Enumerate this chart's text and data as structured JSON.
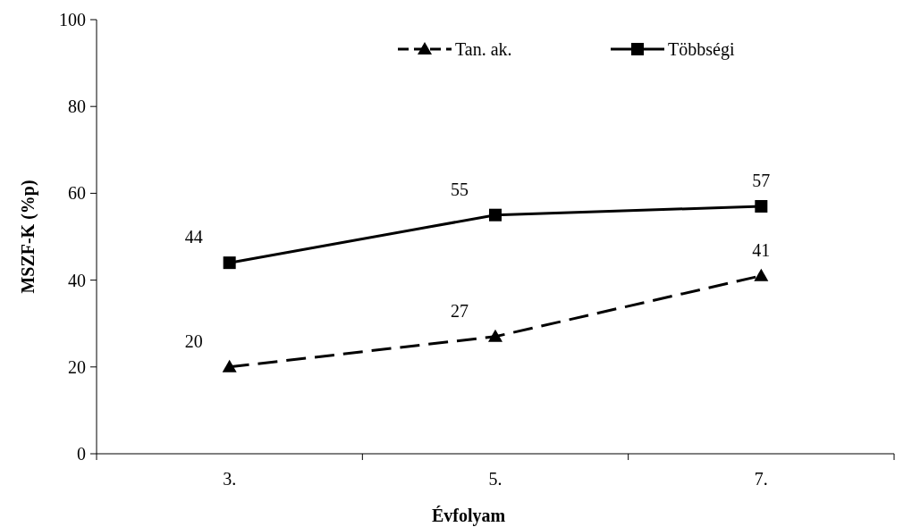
{
  "chart_data": {
    "type": "line",
    "xlabel": "Évfolyam",
    "ylabel": "MSZF-K (%p)",
    "categories": [
      "3.",
      "5.",
      "7."
    ],
    "series": [
      {
        "name": "Tan. ak.",
        "color": "#000000",
        "values": [
          20,
          27,
          41
        ],
        "marker": "triangle",
        "line_style": "dashed"
      },
      {
        "name": "Többségi",
        "color": "#000000",
        "values": [
          44,
          55,
          57
        ],
        "marker": "square",
        "line_style": "solid"
      }
    ],
    "ylim": [
      0,
      100
    ],
    "yticks": [
      0,
      20,
      40,
      60,
      80,
      100
    ],
    "grid": false,
    "legend": "top right",
    "data_labels": true
  }
}
